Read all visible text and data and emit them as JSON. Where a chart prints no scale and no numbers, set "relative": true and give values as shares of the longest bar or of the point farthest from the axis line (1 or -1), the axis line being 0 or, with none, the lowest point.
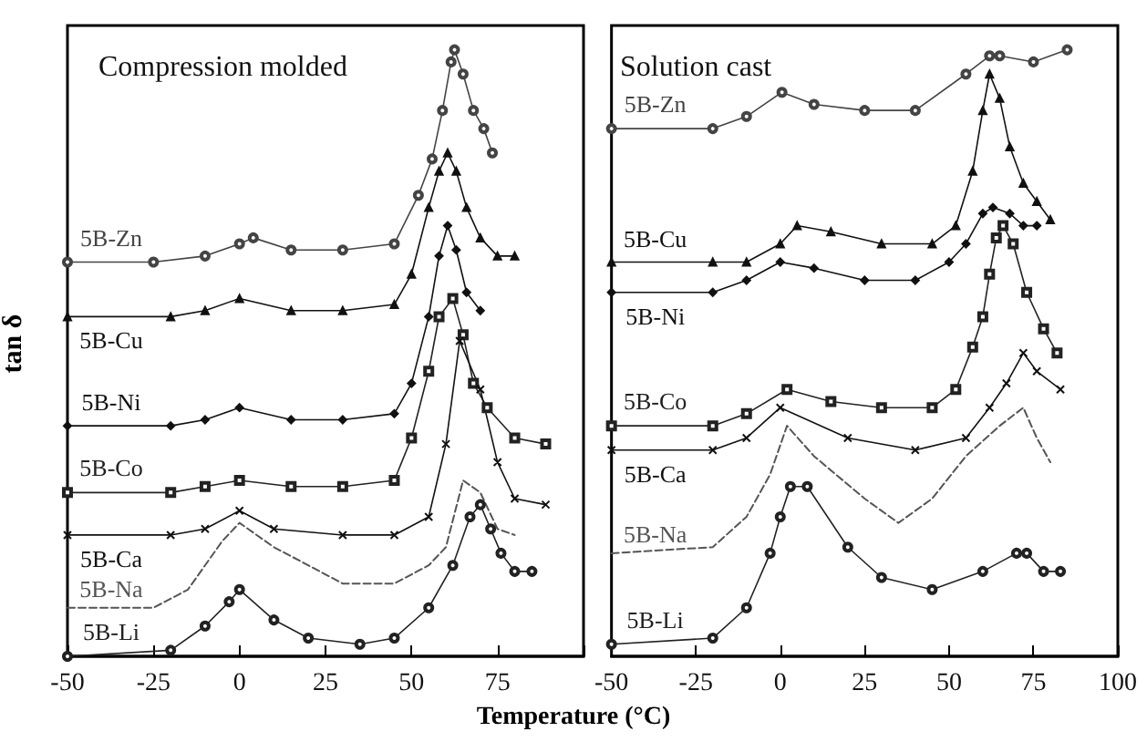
{
  "chart_data": [
    {
      "type": "line",
      "title": "Compression molded",
      "xlabel": "Temperature (°C)",
      "ylabel": "tan δ",
      "relative": true,
      "xlim": [
        -50,
        100
      ],
      "xticks": [
        -50,
        -25,
        0,
        25,
        50,
        75,
        {
          "value": 100,
          "label": null
        }
      ],
      "legend": false,
      "grid": false,
      "series": [
        {
          "name": "5B-Zn",
          "color": "#444444",
          "marker": "circle",
          "x": [
            -50,
            -25,
            -10,
            0,
            4,
            15,
            30,
            45,
            52,
            56,
            59,
            61.5,
            62.5,
            65,
            68,
            71,
            73.5
          ],
          "values": [
            0.65,
            0.65,
            0.66,
            0.68,
            0.69,
            0.67,
            0.67,
            0.68,
            0.76,
            0.82,
            0.9,
            0.98,
            1.0,
            0.96,
            0.9,
            0.87,
            0.83
          ]
        },
        {
          "name": "5B-Cu",
          "color": "#111111",
          "marker": "triangle",
          "x": [
            -50,
            -20,
            -10,
            0,
            15,
            30,
            45,
            50,
            55,
            58,
            60.5,
            63,
            66,
            70,
            75,
            80
          ],
          "values": [
            0.56,
            0.56,
            0.57,
            0.59,
            0.57,
            0.57,
            0.58,
            0.63,
            0.74,
            0.8,
            0.83,
            0.8,
            0.74,
            0.69,
            0.66,
            0.66
          ]
        },
        {
          "name": "5B-Ni",
          "color": "#111111",
          "marker": "diamond",
          "x": [
            -50,
            -20,
            -10,
            0,
            15,
            30,
            45,
            50,
            55,
            58,
            60.5,
            63,
            66,
            70
          ],
          "values": [
            0.38,
            0.38,
            0.39,
            0.41,
            0.39,
            0.39,
            0.4,
            0.45,
            0.56,
            0.66,
            0.71,
            0.67,
            0.6,
            0.57
          ]
        },
        {
          "name": "5B-Co",
          "color": "#222222",
          "marker": "square",
          "x": [
            -50,
            -20,
            -10,
            0,
            15,
            30,
            45,
            50,
            55,
            58,
            62,
            65,
            68,
            72,
            80,
            89
          ],
          "values": [
            0.27,
            0.27,
            0.28,
            0.29,
            0.28,
            0.28,
            0.29,
            0.36,
            0.47,
            0.56,
            0.59,
            0.53,
            0.45,
            0.41,
            0.36,
            0.35
          ]
        },
        {
          "name": "5B-Ca",
          "color": "#111111",
          "marker": "cross",
          "x": [
            -50,
            -20,
            -10,
            0,
            10,
            30,
            45,
            55,
            60,
            64,
            70,
            75,
            80,
            89
          ],
          "values": [
            0.2,
            0.2,
            0.21,
            0.24,
            0.21,
            0.2,
            0.2,
            0.23,
            0.35,
            0.52,
            0.44,
            0.32,
            0.26,
            0.25
          ]
        },
        {
          "name": "5B-Na",
          "color": "#555555",
          "marker": "none",
          "line_style": "dashed",
          "x": [
            -50,
            -25,
            -15,
            -5,
            0,
            10,
            30,
            45,
            55,
            60,
            65,
            70,
            75,
            80
          ],
          "values": [
            0.08,
            0.08,
            0.11,
            0.19,
            0.22,
            0.18,
            0.12,
            0.12,
            0.15,
            0.18,
            0.29,
            0.27,
            0.21,
            0.2
          ]
        },
        {
          "name": "5B-Li",
          "color": "#222222",
          "marker": "circle",
          "x": [
            -50,
            -20,
            -10,
            -3,
            0,
            10,
            20,
            35,
            45,
            55,
            62,
            67,
            70,
            73,
            76,
            80,
            85
          ],
          "values": [
            0.0,
            0.01,
            0.05,
            0.09,
            0.11,
            0.06,
            0.03,
            0.02,
            0.03,
            0.08,
            0.15,
            0.23,
            0.25,
            0.21,
            0.17,
            0.14,
            0.14
          ]
        }
      ]
    },
    {
      "type": "line",
      "title": "Solution cast",
      "relative": true,
      "xlim": [
        -50,
        100
      ],
      "xticks": [
        -50,
        -25,
        0,
        25,
        50,
        75,
        100
      ],
      "legend": false,
      "grid": false,
      "series": [
        {
          "name": "5B-Zn",
          "color": "#444444",
          "marker": "circle",
          "x": [
            -50,
            -20,
            -10,
            0.5,
            10,
            25,
            40,
            55,
            62,
            65,
            75,
            85
          ],
          "values": [
            0.87,
            0.87,
            0.89,
            0.93,
            0.91,
            0.9,
            0.9,
            0.96,
            0.99,
            0.99,
            0.98,
            1.0
          ]
        },
        {
          "name": "5B-Cu",
          "color": "#111111",
          "marker": "triangle",
          "x": [
            -50,
            -20,
            -10,
            0,
            5,
            15,
            30,
            45,
            52,
            57,
            60,
            62,
            65,
            68,
            72,
            76,
            80
          ],
          "values": [
            0.65,
            0.65,
            0.65,
            0.68,
            0.71,
            0.7,
            0.68,
            0.68,
            0.71,
            0.8,
            0.9,
            0.96,
            0.92,
            0.84,
            0.78,
            0.75,
            0.72
          ]
        },
        {
          "name": "5B-Ni",
          "color": "#111111",
          "marker": "diamond",
          "x": [
            -50,
            -20,
            -10,
            0,
            10,
            25,
            40,
            50,
            55,
            60,
            63,
            68,
            72,
            76
          ],
          "values": [
            0.6,
            0.6,
            0.62,
            0.65,
            0.64,
            0.62,
            0.62,
            0.65,
            0.68,
            0.73,
            0.74,
            0.73,
            0.71,
            0.71
          ]
        },
        {
          "name": "5B-Co",
          "color": "#222222",
          "marker": "square",
          "x": [
            -50,
            -20,
            -10,
            2,
            15,
            30,
            45,
            52,
            57,
            60,
            62,
            64,
            66,
            69,
            73,
            78,
            82
          ],
          "values": [
            0.38,
            0.38,
            0.4,
            0.44,
            0.42,
            0.41,
            0.41,
            0.44,
            0.51,
            0.56,
            0.63,
            0.69,
            0.71,
            0.68,
            0.6,
            0.54,
            0.5
          ]
        },
        {
          "name": "5B-Ca",
          "color": "#111111",
          "marker": "cross",
          "x": [
            -50,
            -20,
            -10,
            0,
            20,
            40,
            55,
            62,
            67,
            72,
            76,
            83
          ],
          "values": [
            0.34,
            0.34,
            0.36,
            0.41,
            0.36,
            0.34,
            0.36,
            0.41,
            0.45,
            0.5,
            0.47,
            0.44
          ]
        },
        {
          "name": "5B-Na",
          "color": "#555555",
          "marker": "none",
          "line_style": "dashed",
          "x": [
            -50,
            -20,
            -10,
            -3,
            2,
            10,
            25,
            35,
            45,
            55,
            65,
            72,
            76,
            80
          ],
          "values": [
            0.17,
            0.18,
            0.23,
            0.3,
            0.38,
            0.33,
            0.26,
            0.22,
            0.26,
            0.33,
            0.38,
            0.41,
            0.36,
            0.32
          ]
        },
        {
          "name": "5B-Li",
          "color": "#222222",
          "marker": "circle",
          "x": [
            -50,
            -20,
            -10,
            -3,
            0,
            3,
            8,
            20,
            30,
            45,
            60,
            70,
            73,
            78,
            83
          ],
          "values": [
            0.02,
            0.03,
            0.08,
            0.17,
            0.23,
            0.28,
            0.28,
            0.18,
            0.13,
            0.11,
            0.14,
            0.17,
            0.17,
            0.14,
            0.14
          ]
        }
      ]
    }
  ]
}
